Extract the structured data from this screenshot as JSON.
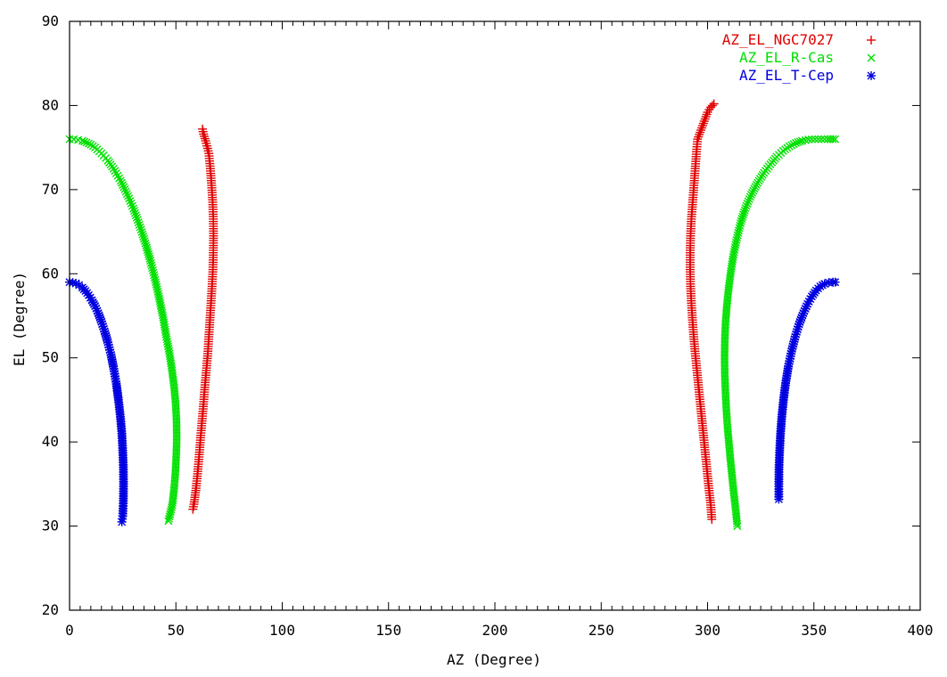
{
  "chart_data": {
    "type": "scatter",
    "xlabel": "AZ (Degree)",
    "ylabel": "EL (Degree)",
    "xlim": [
      0,
      400
    ],
    "ylim": [
      20,
      90
    ],
    "xticks": [
      0,
      50,
      100,
      150,
      200,
      250,
      300,
      350,
      400
    ],
    "yticks": [
      20,
      30,
      40,
      50,
      60,
      70,
      80,
      90
    ],
    "xtick_labels": [
      "0",
      "50",
      "100",
      "150",
      "200",
      "250",
      "300",
      "350",
      "400"
    ],
    "ytick_labels": [
      "20",
      "30",
      "40",
      "50",
      "60",
      "70",
      "80",
      "90"
    ],
    "grid": false,
    "legend_position": "top-right",
    "series": [
      {
        "name": "AZ_EL_NGC7027",
        "marker": "+",
        "color": "#e00000",
        "legend_symbol": "+",
        "points": [
          [
            58,
            32
          ],
          [
            58.5,
            32.6
          ],
          [
            59.5,
            34.5
          ],
          [
            60.3,
            36.5
          ],
          [
            61,
            38.5
          ],
          [
            61.6,
            40.5
          ],
          [
            62.3,
            42.5
          ],
          [
            63,
            44.5
          ],
          [
            63.6,
            46.5
          ],
          [
            64.3,
            48.5
          ],
          [
            65,
            50.5
          ],
          [
            65.5,
            52.5
          ],
          [
            66,
            54.5
          ],
          [
            66.5,
            56.5
          ],
          [
            67,
            58.5
          ],
          [
            67.4,
            60.5
          ],
          [
            67.6,
            62.5
          ],
          [
            67.7,
            64.5
          ],
          [
            67.6,
            66.5
          ],
          [
            67.3,
            68.5
          ],
          [
            66.8,
            70.5
          ],
          [
            66.2,
            72.5
          ],
          [
            65.5,
            74.3
          ],
          [
            64,
            75.8
          ],
          [
            63,
            76.6
          ],
          [
            62.5,
            77.2
          ],
          [
            302,
            30.8
          ],
          [
            301.5,
            32.5
          ],
          [
            300.6,
            34.5
          ],
          [
            299.8,
            36.5
          ],
          [
            299,
            38.5
          ],
          [
            298.2,
            40.5
          ],
          [
            297.4,
            42.5
          ],
          [
            296.6,
            44.5
          ],
          [
            295.8,
            46.5
          ],
          [
            295,
            48.5
          ],
          [
            294.2,
            50.5
          ],
          [
            293.5,
            52.5
          ],
          [
            292.9,
            54.5
          ],
          [
            292.4,
            56.5
          ],
          [
            292,
            58.5
          ],
          [
            291.8,
            60.5
          ],
          [
            291.8,
            62.5
          ],
          [
            292,
            64.5
          ],
          [
            292.4,
            66.5
          ],
          [
            293,
            68.5
          ],
          [
            293.6,
            70.5
          ],
          [
            294.2,
            72.5
          ],
          [
            294.8,
            74.5
          ],
          [
            295.3,
            76
          ],
          [
            300,
            79.2
          ],
          [
            301.5,
            79.8
          ],
          [
            303,
            80.2
          ]
        ]
      },
      {
        "name": "AZ_EL_R-Cas",
        "marker": "x",
        "color": "#00e000",
        "legend_symbol": "×",
        "points": [
          [
            0,
            76
          ],
          [
            2,
            75.98
          ],
          [
            4,
            75.9
          ],
          [
            6,
            75.8
          ],
          [
            8,
            75.6
          ],
          [
            10,
            75.35
          ],
          [
            12,
            75
          ],
          [
            14,
            74.55
          ],
          [
            16,
            74.05
          ],
          [
            18,
            73.45
          ],
          [
            20,
            72.75
          ],
          [
            22,
            71.95
          ],
          [
            24,
            71.05
          ],
          [
            26,
            70.05
          ],
          [
            28,
            68.95
          ],
          [
            30,
            67.75
          ],
          [
            32,
            66.4
          ],
          [
            34,
            64.95
          ],
          [
            36,
            63.35
          ],
          [
            38,
            61.55
          ],
          [
            40,
            59.55
          ],
          [
            42,
            57.3
          ],
          [
            44,
            54.8
          ],
          [
            45.5,
            52.5
          ],
          [
            47,
            50.5
          ],
          [
            48.2,
            48.5
          ],
          [
            49.2,
            46.5
          ],
          [
            49.9,
            44.5
          ],
          [
            50.3,
            42.5
          ],
          [
            50.4,
            40.5
          ],
          [
            50.2,
            38.5
          ],
          [
            49.8,
            36.5
          ],
          [
            49.2,
            34.5
          ],
          [
            48.3,
            32.5
          ],
          [
            46.5,
            30.6
          ],
          [
            314,
            30
          ],
          [
            313.2,
            32
          ],
          [
            312.3,
            34
          ],
          [
            311.5,
            36
          ],
          [
            310.7,
            38
          ],
          [
            310,
            40
          ],
          [
            309.3,
            42
          ],
          [
            308.8,
            44
          ],
          [
            308.4,
            46
          ],
          [
            308.1,
            48
          ],
          [
            308,
            50
          ],
          [
            308.1,
            52
          ],
          [
            308.4,
            54
          ],
          [
            309,
            56
          ],
          [
            309.8,
            58
          ],
          [
            310.8,
            60
          ],
          [
            312,
            62
          ],
          [
            313.6,
            64
          ],
          [
            315.5,
            66
          ],
          [
            317.8,
            67.8
          ],
          [
            320.5,
            69.4
          ],
          [
            323.5,
            70.8
          ],
          [
            326.5,
            72
          ],
          [
            329.5,
            73
          ],
          [
            332.5,
            73.9
          ],
          [
            335.5,
            74.6
          ],
          [
            338.5,
            75.15
          ],
          [
            341.5,
            75.55
          ],
          [
            344.5,
            75.8
          ],
          [
            347.5,
            75.95
          ],
          [
            350.5,
            76
          ],
          [
            353.5,
            76
          ],
          [
            356.5,
            76
          ],
          [
            360,
            76
          ]
        ]
      },
      {
        "name": "AZ_EL_T-Cep",
        "marker": "*",
        "color": "#0000e0",
        "legend_symbol": "✱",
        "points": [
          [
            0,
            59
          ],
          [
            1.5,
            58.95
          ],
          [
            3,
            58.85
          ],
          [
            4.5,
            58.65
          ],
          [
            6,
            58.35
          ],
          [
            7.5,
            57.95
          ],
          [
            9,
            57.45
          ],
          [
            10.5,
            56.85
          ],
          [
            12,
            56.15
          ],
          [
            13.5,
            55.3
          ],
          [
            15,
            54.3
          ],
          [
            16.5,
            53.15
          ],
          [
            18,
            51.85
          ],
          [
            19.5,
            50.35
          ],
          [
            20.8,
            48.7
          ],
          [
            22,
            46.9
          ],
          [
            23,
            45
          ],
          [
            23.9,
            43
          ],
          [
            24.6,
            41
          ],
          [
            25,
            39
          ],
          [
            25.3,
            37
          ],
          [
            25.4,
            35
          ],
          [
            25.3,
            33
          ],
          [
            25,
            31.2
          ],
          [
            24.6,
            30.5
          ],
          [
            333.5,
            33.2
          ],
          [
            333.5,
            35
          ],
          [
            333.6,
            37
          ],
          [
            333.9,
            39
          ],
          [
            334.3,
            41
          ],
          [
            334.9,
            43
          ],
          [
            335.7,
            45
          ],
          [
            336.7,
            47
          ],
          [
            338,
            49
          ],
          [
            339.5,
            50.8
          ],
          [
            341.2,
            52.5
          ],
          [
            343,
            54
          ],
          [
            345,
            55.3
          ],
          [
            347,
            56.4
          ],
          [
            349,
            57.3
          ],
          [
            351,
            58
          ],
          [
            353,
            58.5
          ],
          [
            355,
            58.8
          ],
          [
            357,
            58.95
          ],
          [
            359,
            59
          ],
          [
            360,
            59
          ]
        ]
      }
    ]
  }
}
